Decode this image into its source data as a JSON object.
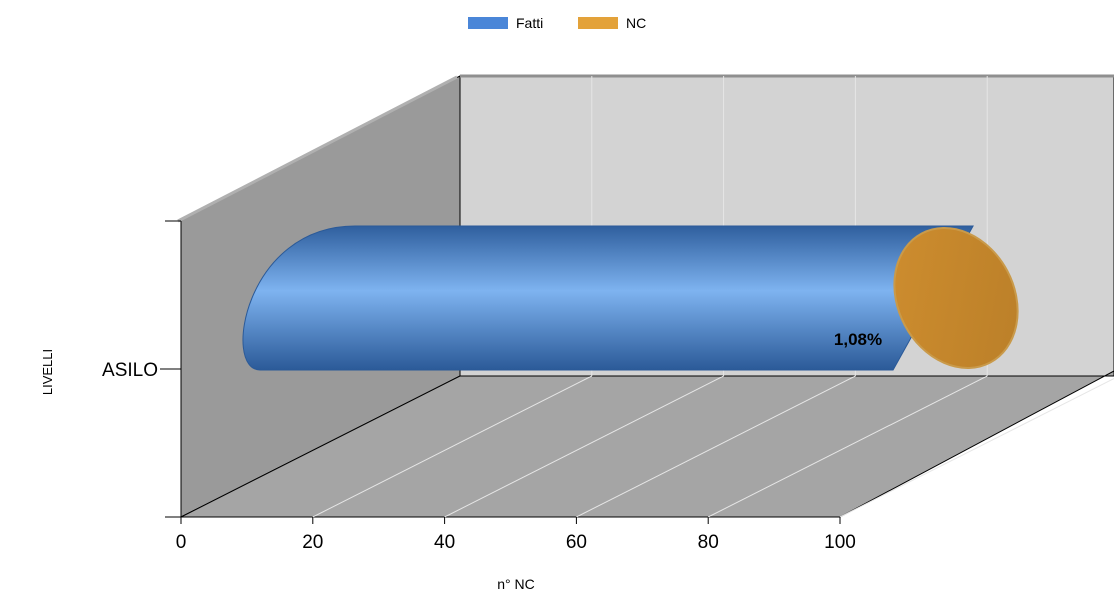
{
  "chart_data": {
    "type": "bar",
    "orientation": "horizontal",
    "stacked": true,
    "three_d": true,
    "categories": [
      "ASILO"
    ],
    "series": [
      {
        "name": "Fatti",
        "values": [
          98.92
        ],
        "color": "#4a86d8"
      },
      {
        "name": "NC",
        "values": [
          1.08
        ],
        "color": "#e3a23a"
      }
    ],
    "data_labels": [
      {
        "series": "NC",
        "category": "ASILO",
        "text": "1,08%"
      }
    ],
    "xlabel": "n° NC",
    "ylabel": "LIVELLI",
    "xlim": [
      0,
      100
    ],
    "x_ticks": [
      "0",
      "20",
      "40",
      "60",
      "80",
      "100"
    ],
    "legend": "top",
    "grid": true
  }
}
